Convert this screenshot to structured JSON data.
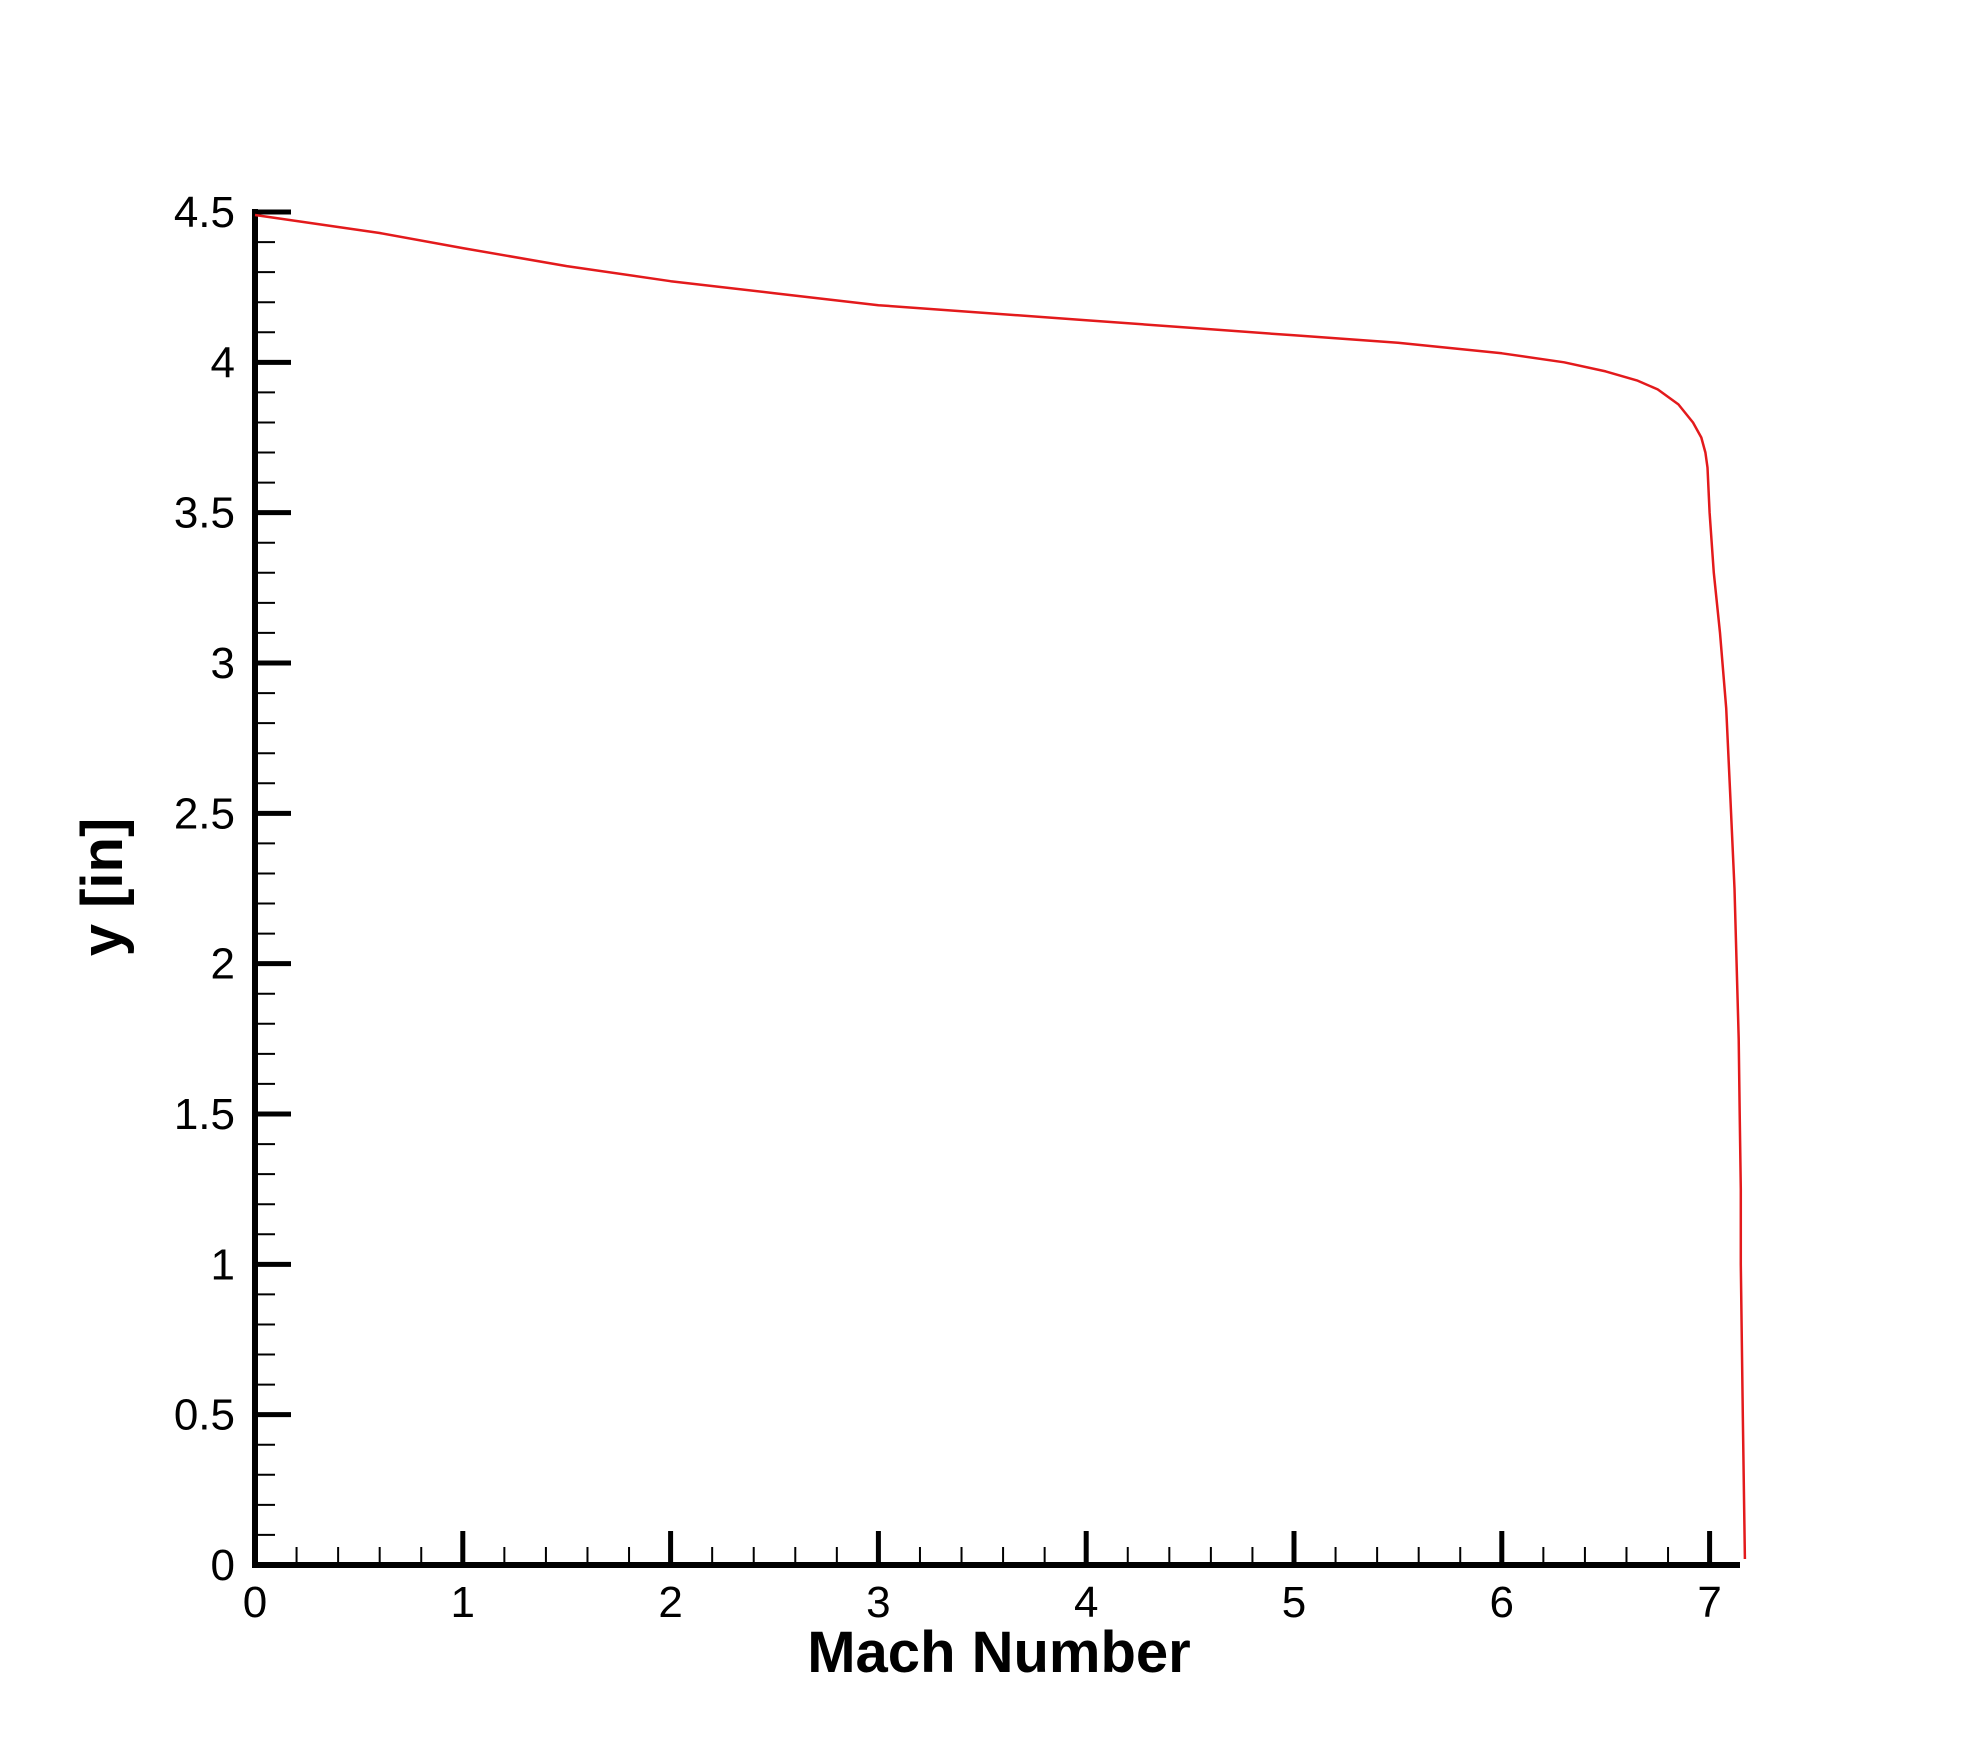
{
  "chart_data": {
    "type": "line",
    "title": "",
    "xlabel": "Mach Number",
    "ylabel": "y [in]",
    "xlim": [
      0,
      7.25
    ],
    "ylim": [
      0,
      4.5
    ],
    "x_ticks": [
      "0",
      "1",
      "2",
      "3",
      "4",
      "5",
      "6",
      "7"
    ],
    "y_ticks": [
      "0",
      "0.5",
      "1",
      "1.5",
      "2",
      "2.5",
      "3",
      "3.5",
      "4",
      "4.5"
    ],
    "grid": false,
    "legend": "none",
    "line_color": "#e31a1c",
    "series": [
      {
        "x": [
          0.0,
          0.3,
          0.6,
          1.0,
          1.5,
          2.0,
          2.5,
          3.0,
          3.5,
          4.0,
          4.5,
          5.0,
          5.5,
          6.0,
          6.3,
          6.5,
          6.65,
          6.75,
          6.85,
          6.92,
          6.96,
          6.98,
          6.99,
          7.0,
          7.02,
          7.05,
          7.08,
          7.1,
          7.12,
          7.13,
          7.14,
          7.145,
          7.15,
          7.15,
          7.16,
          7.17
        ],
        "y": [
          4.49,
          4.46,
          4.43,
          4.38,
          4.32,
          4.27,
          4.23,
          4.19,
          4.165,
          4.14,
          4.115,
          4.09,
          4.065,
          4.03,
          4.0,
          3.97,
          3.94,
          3.91,
          3.86,
          3.8,
          3.75,
          3.7,
          3.65,
          3.5,
          3.3,
          3.1,
          2.85,
          2.55,
          2.25,
          2.0,
          1.75,
          1.5,
          1.25,
          1.0,
          0.5,
          0.02
        ]
      }
    ]
  }
}
